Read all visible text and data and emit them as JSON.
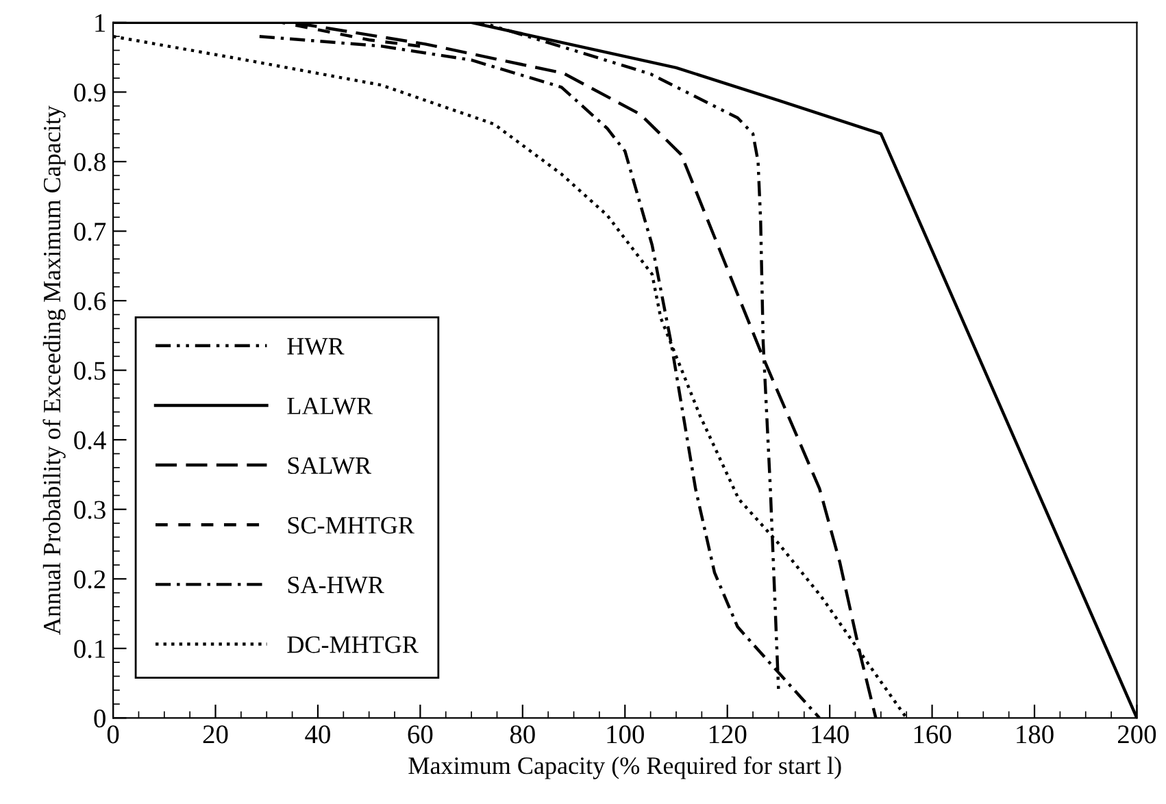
{
  "chart_data": {
    "type": "line",
    "xlabel": "Maximum Capacity (% Required for start l)",
    "ylabel": "Annual Probability of Exceeding Maximum Capacity",
    "xlim": [
      0,
      200
    ],
    "ylim": [
      0,
      1
    ],
    "xticks": [
      0,
      20,
      40,
      60,
      80,
      100,
      120,
      140,
      160,
      180,
      200
    ],
    "yticks": [
      0,
      0.1,
      0.2,
      0.3,
      0.4,
      0.5,
      0.6,
      0.7,
      0.8,
      0.9,
      1
    ],
    "grid": false,
    "legend": "lower left",
    "marker": "none",
    "series": [
      {
        "name": "HWR",
        "color": "#000000",
        "line_style": "dashdotdot",
        "x": [
          0,
          72,
          90,
          105,
          122,
          125,
          126,
          126.5,
          127,
          128.4,
          130
        ],
        "values": [
          1,
          1,
          0.96,
          0.926,
          0.863,
          0.84,
          0.8,
          0.715,
          0.54,
          0.33,
          0.04
        ]
      },
      {
        "name": "LALWR",
        "color": "#000000",
        "line_style": "solid",
        "x": [
          0,
          70,
          110,
          130,
          150,
          200
        ],
        "values": [
          1,
          1,
          0.935,
          0.888,
          0.84,
          0
        ]
      },
      {
        "name": "SALWR",
        "color": "#000000",
        "line_style": "longdash",
        "x": [
          0,
          35,
          61,
          88,
          103,
          111,
          127,
          138,
          142,
          146,
          149
        ],
        "values": [
          1,
          1,
          0.969,
          0.927,
          0.868,
          0.81,
          0.518,
          0.33,
          0.223,
          0.09,
          0
        ]
      },
      {
        "name": "SC-MHTGR",
        "color": "#000000",
        "line_style": "dashed",
        "x": [
          0,
          33,
          50,
          61
        ],
        "values": [
          1,
          1,
          0.975,
          0.965
        ]
      },
      {
        "name": "SA-HWR",
        "color": "#000000",
        "line_style": "dashdot",
        "x": [
          28.6,
          52.4,
          70,
          87.6,
          96.5,
          100,
          105.3,
          109,
          113.8,
          117.5,
          122,
          128.8,
          138
        ],
        "values": [
          0.98,
          0.966,
          0.946,
          0.907,
          0.848,
          0.815,
          0.68,
          0.54,
          0.329,
          0.209,
          0.131,
          0.075,
          0
        ]
      },
      {
        "name": "DC-MHTGR",
        "color": "#000000",
        "line_style": "dotted",
        "x": [
          0,
          26,
          52.4,
          74.4,
          87.6,
          96.5,
          105.3,
          107,
          114.7,
          122.2,
          130,
          138.4,
          147.8,
          155
        ],
        "values": [
          0.98,
          0.946,
          0.91,
          0.854,
          0.782,
          0.723,
          0.638,
          0.575,
          0.434,
          0.315,
          0.251,
          0.174,
          0.075,
          0
        ]
      }
    ]
  }
}
